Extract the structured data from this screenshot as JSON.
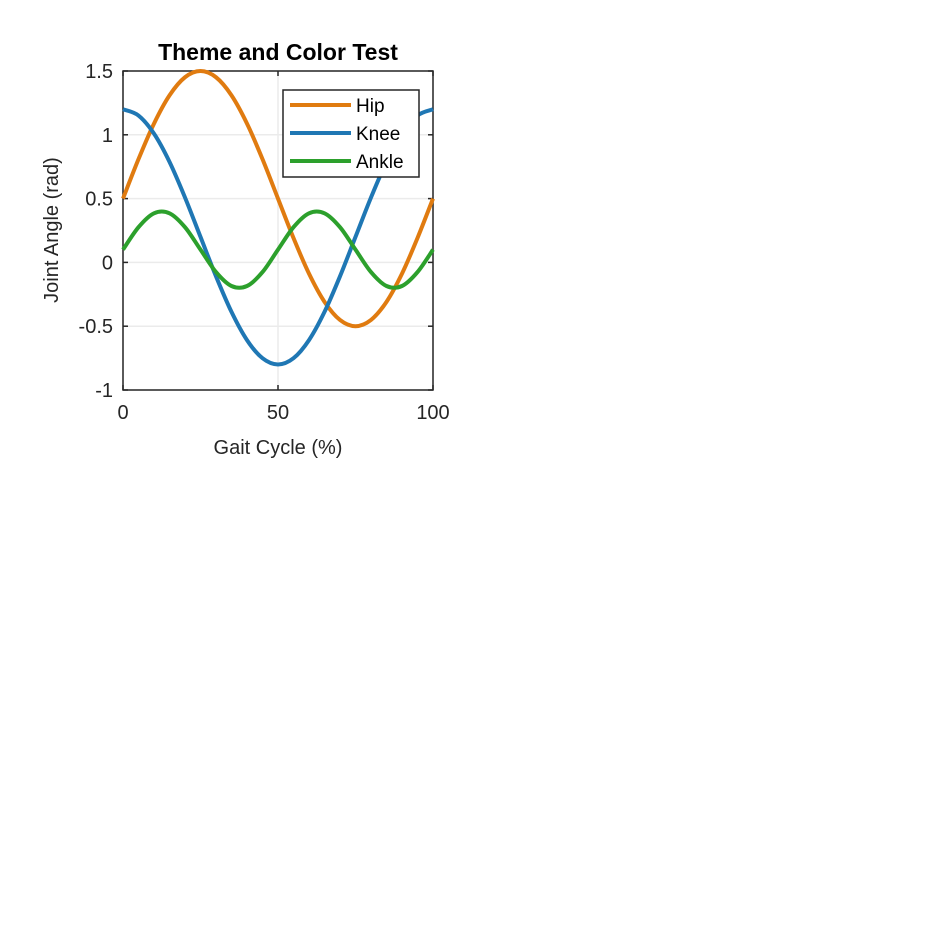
{
  "chart_data": {
    "type": "line",
    "title": "Theme and Color Test",
    "xlabel": "Gait Cycle (%)",
    "ylabel": "Joint Angle (rad)",
    "xlim": [
      0,
      100
    ],
    "ylim": [
      -1,
      1.5
    ],
    "xticks": [
      0,
      50,
      100
    ],
    "yticks": [
      -1,
      -0.5,
      0,
      0.5,
      1,
      1.5
    ],
    "xtick_labels": [
      "0",
      "50",
      "100"
    ],
    "ytick_labels": [
      "-1",
      "-0.5",
      "0",
      "0.5",
      "1",
      "1.5"
    ],
    "grid": true,
    "legend_position": "top-right",
    "series": [
      {
        "name": "Hip",
        "color": "#e07b10",
        "x": [
          0,
          5,
          10,
          15,
          20,
          25,
          30,
          35,
          40,
          45,
          50,
          55,
          60,
          65,
          70,
          75,
          80,
          85,
          90,
          95,
          100
        ],
        "y": [
          0.5,
          0.809,
          1.088,
          1.309,
          1.451,
          1.5,
          1.451,
          1.309,
          1.088,
          0.809,
          0.5,
          0.191,
          -0.088,
          -0.309,
          -0.451,
          -0.5,
          -0.451,
          -0.309,
          -0.088,
          0.191,
          0.5
        ]
      },
      {
        "name": "Knee",
        "color": "#1f77b4",
        "x": [
          0,
          5,
          10,
          15,
          20,
          25,
          30,
          35,
          40,
          45,
          50,
          55,
          60,
          65,
          70,
          75,
          80,
          85,
          90,
          95,
          100
        ],
        "y": [
          1.2,
          1.151,
          1.009,
          0.788,
          0.509,
          0.2,
          -0.109,
          -0.388,
          -0.609,
          -0.751,
          -0.8,
          -0.751,
          -0.609,
          -0.388,
          -0.109,
          0.2,
          0.509,
          0.788,
          1.009,
          1.151,
          1.2
        ]
      },
      {
        "name": "Ankle",
        "color": "#2ca02c",
        "x": [
          0,
          5,
          10,
          15,
          20,
          25,
          30,
          35,
          40,
          45,
          50,
          55,
          60,
          65,
          70,
          75,
          80,
          85,
          90,
          95,
          100
        ],
        "y": [
          0.1,
          0.276,
          0.385,
          0.385,
          0.276,
          0.1,
          -0.076,
          -0.185,
          -0.185,
          -0.076,
          0.1,
          0.276,
          0.385,
          0.385,
          0.276,
          0.1,
          -0.076,
          -0.185,
          -0.185,
          -0.076,
          0.1
        ]
      }
    ]
  }
}
